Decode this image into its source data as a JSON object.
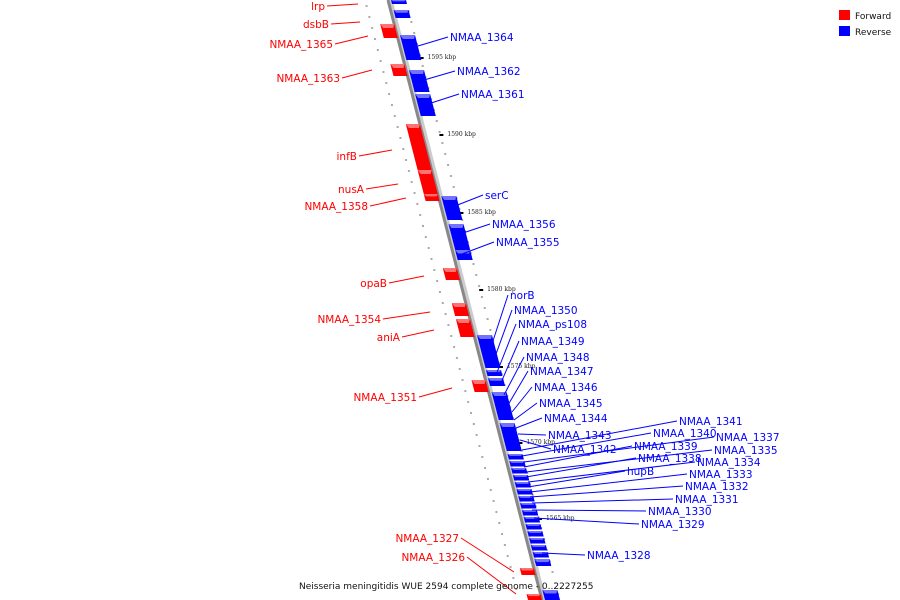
{
  "caption": "Neisseria meningitidis WUE 2594 complete genome - 0..2227255",
  "legend": [
    {
      "label": "Forward",
      "color": "#ff0000"
    },
    {
      "label": "Reverse",
      "color": "#0000ff"
    }
  ],
  "colors": {
    "forward": "#ff0000",
    "forward_top": "#ff8080",
    "reverse": "#0000ff",
    "reverse_top": "#8080ff",
    "backbone": "#888888"
  },
  "scale_labels": [
    "1595 kbp",
    "1590 kbp",
    "1585 kbp",
    "1580 kbp",
    "1575 kbp",
    "1570 kbp",
    "1565 kbp"
  ],
  "forward_labels": [
    "lrp",
    "dsbB",
    "NMAA_1365",
    "NMAA_1363",
    "infB",
    "nusA",
    "NMAA_1358",
    "opaB",
    "NMAA_1354",
    "aniA",
    "NMAA_1351",
    "NMAA_1327",
    "NMAA_1326"
  ],
  "reverse_labels": [
    "NMAA_1364",
    "NMAA_1362",
    "NMAA_1361",
    "serC",
    "NMAA_1356",
    "NMAA_1355",
    "norB",
    "NMAA_1350",
    "NMAA_ps108",
    "NMAA_1349",
    "NMAA_1348",
    "NMAA_1347",
    "NMAA_1346",
    "NMAA_1345",
    "NMAA_1344",
    "NMAA_1343",
    "NMAA_1342",
    "NMAA_1341",
    "NMAA_1340",
    "NMAA_1337",
    "NMAA_1339",
    "NMAA_1335",
    "NMAA_1338",
    "NMAA_1334",
    "hupB",
    "NMAA_1333",
    "NMAA_1332",
    "NMAA_1331",
    "NMAA_1330",
    "NMAA_1329",
    "NMAA_1328"
  ]
}
